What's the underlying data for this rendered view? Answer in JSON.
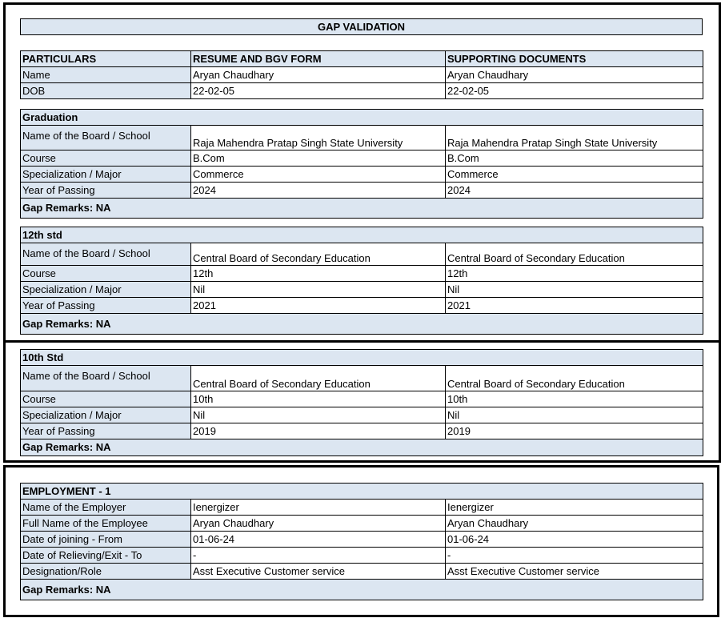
{
  "title": "GAP VALIDATION",
  "header": {
    "col1": "PARTICULARS",
    "col2": "RESUME AND BGV FORM",
    "col3": "SUPPORTING DOCUMENTS"
  },
  "personal": [
    {
      "label": "Name",
      "resume": "Aryan Chaudhary",
      "docs": "Aryan Chaudhary"
    },
    {
      "label": "DOB",
      "resume": "22-02-05",
      "docs": "22-02-05"
    }
  ],
  "sections": [
    {
      "title": "Graduation",
      "remarks": "Gap Remarks: NA",
      "rows": [
        {
          "label": "Name of the Board / School",
          "resume": "Raja Mahendra Pratap Singh State University",
          "docs": "Raja Mahendra Pratap Singh State University"
        },
        {
          "label": "Course",
          "resume": "B.Com",
          "docs": "B.Com"
        },
        {
          "label": "Specialization / Major",
          "resume": "Commerce",
          "docs": "Commerce"
        },
        {
          "label": "Year of Passing",
          "resume": "2024",
          "docs": "2024"
        }
      ]
    },
    {
      "title": "12th std",
      "remarks": "Gap Remarks: NA",
      "rows": [
        {
          "label": "Name of the Board / School",
          "resume": "Central Board of Secondary Education",
          "docs": "Central Board of Secondary Education"
        },
        {
          "label": "Course",
          "resume": "12th",
          "docs": "12th"
        },
        {
          "label": "Specialization / Major",
          "resume": "Nil",
          "docs": "Nil"
        },
        {
          "label": "Year of Passing",
          "resume": "2021",
          "docs": "2021"
        }
      ]
    },
    {
      "title": "10th Std",
      "remarks": "Gap Remarks: NA",
      "rows": [
        {
          "label": "Name of the Board / School",
          "resume": "Central Board of Secondary Education",
          "docs": "Central Board of Secondary Education"
        },
        {
          "label": "Course",
          "resume": "10th",
          "docs": "10th"
        },
        {
          "label": "Specialization / Major",
          "resume": "Nil",
          "docs": "Nil"
        },
        {
          "label": "Year of Passing",
          "resume": "2019",
          "docs": "2019"
        }
      ]
    },
    {
      "title": "EMPLOYMENT - 1",
      "remarks": "Gap Remarks: NA",
      "rows": [
        {
          "label": "Name of the Employer",
          "resume": "Ienergizer",
          "docs": "Ienergizer"
        },
        {
          "label": "Full Name of the Employee",
          "resume": "Aryan Chaudhary",
          "docs": "Aryan Chaudhary"
        },
        {
          "label": "Date of joining - From",
          "resume": "01-06-24",
          "docs": "01-06-24"
        },
        {
          "label": "Date of Relieving/Exit - To",
          "resume": "-",
          "docs": "-"
        },
        {
          "label": "Designation/Role",
          "resume": "Asst Executive Customer service",
          "docs": "Asst Executive Customer service"
        }
      ]
    }
  ],
  "colors": {
    "shade": "#dce6f1",
    "border": "#000000"
  }
}
